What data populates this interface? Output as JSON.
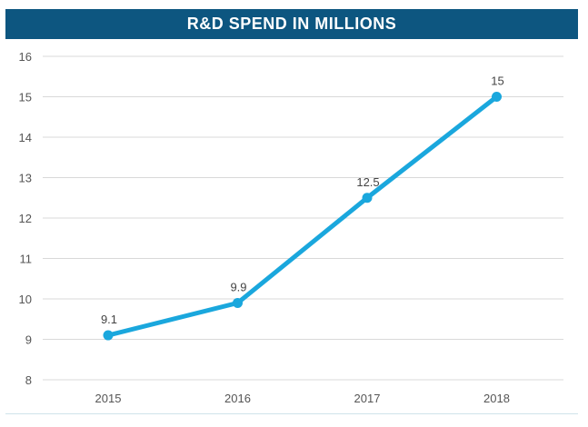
{
  "chart_data": {
    "type": "line",
    "title": "R&D SPEND IN MILLIONS",
    "xlabel": "",
    "ylabel": "",
    "categories": [
      "2015",
      "2016",
      "2017",
      "2018"
    ],
    "series": [
      {
        "values": [
          9.1,
          9.9,
          12.5,
          15
        ],
        "data_labels": [
          "9.1",
          "9.9",
          "12.5",
          "15"
        ]
      }
    ],
    "ylim": [
      8,
      16
    ],
    "yticks": [
      "8",
      "9",
      "10",
      "11",
      "12",
      "13",
      "14",
      "15",
      "16"
    ],
    "grid": true,
    "legend": "none",
    "colors": {
      "title_bar": "#0d5680",
      "title_text": "#ffffff",
      "line": "#1aa7dd",
      "grid": "#d9d9d9",
      "tick_text": "#555555",
      "label_text": "#444444"
    }
  }
}
